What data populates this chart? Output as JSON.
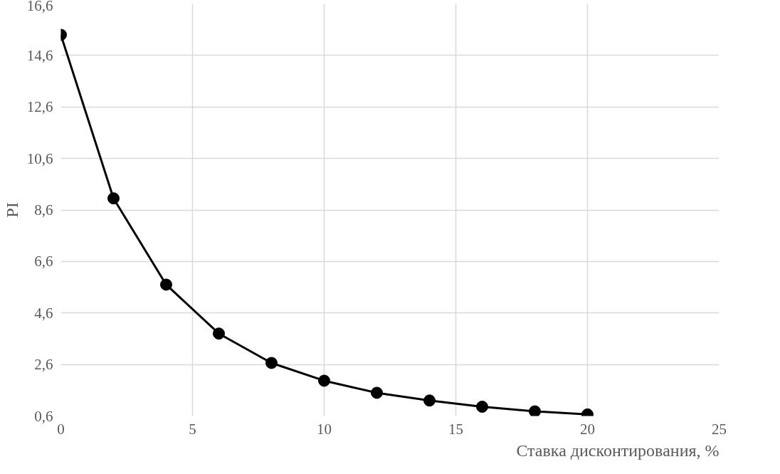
{
  "chart_data": {
    "type": "line",
    "xlabel": "Ставка дисконтирования, %",
    "ylabel": "PI",
    "x": [
      0,
      2,
      4,
      6,
      8,
      10,
      12,
      14,
      16,
      18,
      20
    ],
    "series": [
      {
        "color": "#000000",
        "values": [
          15.4,
          9.05,
          5.7,
          3.8,
          2.66,
          1.97,
          1.5,
          1.2,
          0.96,
          0.78,
          0.66
        ]
      }
    ],
    "xlim": [
      0,
      25
    ],
    "xticks": [
      0,
      5,
      10,
      15,
      20,
      25
    ],
    "ylim": [
      0.6,
      16.6
    ],
    "yticks": [
      {
        "value": 0.6,
        "label": "0,6"
      },
      {
        "value": 2.6,
        "label": "2,6"
      },
      {
        "value": 4.6,
        "label": "4,6"
      },
      {
        "value": 6.6,
        "label": "6,6"
      },
      {
        "value": 8.6,
        "label": "8,6"
      },
      {
        "value": 10.6,
        "label": "10,6"
      },
      {
        "value": 12.6,
        "label": "12,6"
      },
      {
        "value": 14.6,
        "label": "14,6"
      },
      {
        "value": 16.6,
        "label": "16,6"
      }
    ],
    "grid": true,
    "marker": "circle",
    "line_style": "solid"
  }
}
